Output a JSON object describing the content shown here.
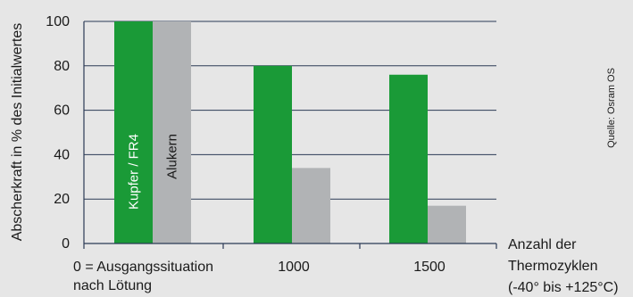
{
  "chart_data": {
    "type": "bar",
    "categories": [
      "0 = Ausgangssituation\nnach Lötung",
      "1000",
      "1500"
    ],
    "series": [
      {
        "name": "Kupfer / FR4",
        "values": [
          100,
          80,
          76
        ],
        "color": "#1a9a37"
      },
      {
        "name": "Alukern",
        "values": [
          100,
          34,
          17
        ],
        "color": "#b1b3b5"
      }
    ],
    "ylabel": "Abscherkraft in % des Initialwertes",
    "xlabel": "Anzahl der\nThermozyklen\n(-40° bis +125°C)",
    "ylim": [
      0,
      100
    ],
    "yticks": [
      0,
      20,
      40,
      60,
      80,
      100
    ],
    "grid": true,
    "legend": "inside bars",
    "source": "Quelle: Osram OS"
  },
  "colors": {
    "background": "#e6e6e6",
    "gridline": "#2b3a55",
    "axis": "#2b3a55"
  }
}
